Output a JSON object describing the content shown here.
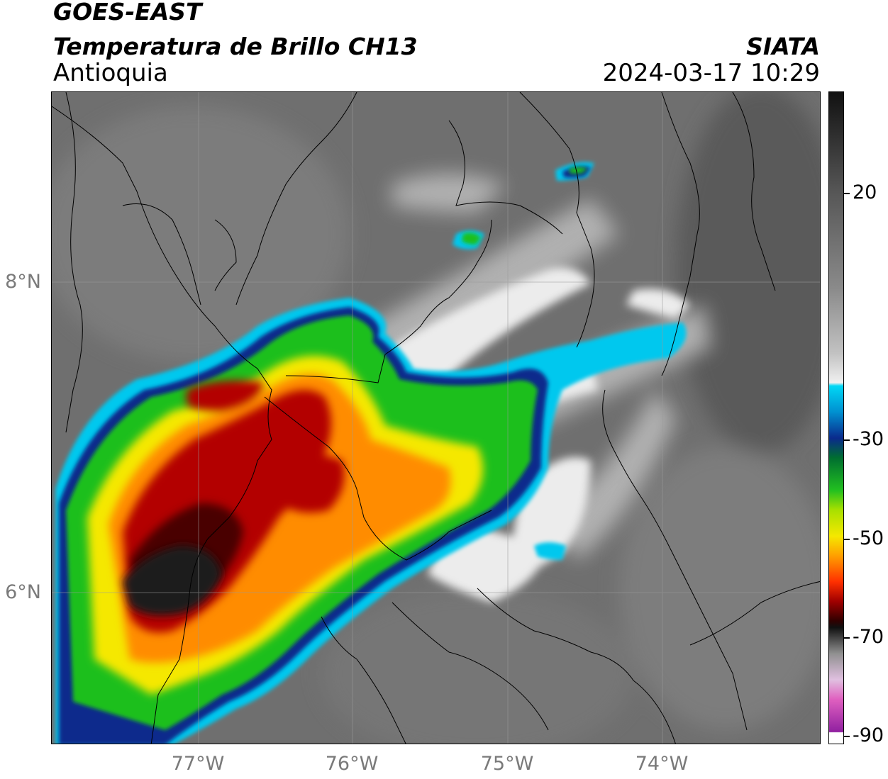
{
  "header": {
    "satellite": "GOES-EAST",
    "product": "Temperatura de Brillo CH13",
    "region": "Antioquia",
    "organization": "SIATA",
    "datetime": "2024-03-17 10:29"
  },
  "axes": {
    "lat_labels": [
      "8°N",
      "6°N"
    ],
    "lon_labels": [
      "77°W",
      "76°W",
      "75°W",
      "74°W"
    ]
  },
  "colorbar": {
    "tick_labels": [
      "20",
      "-30",
      "-50",
      "-70",
      "-90"
    ],
    "range": [
      -90,
      35
    ]
  },
  "colors": {
    "warm_gray": "#6e6e6e",
    "cold_red": "#b30000",
    "very_cold_black": "#1a1a1a",
    "cyan": "#00c8ee",
    "blue": "#0a2a8c",
    "green": "#1fbf1f",
    "yellow": "#f5e800",
    "orange": "#ff8c00",
    "magenta": "#b040b0"
  }
}
